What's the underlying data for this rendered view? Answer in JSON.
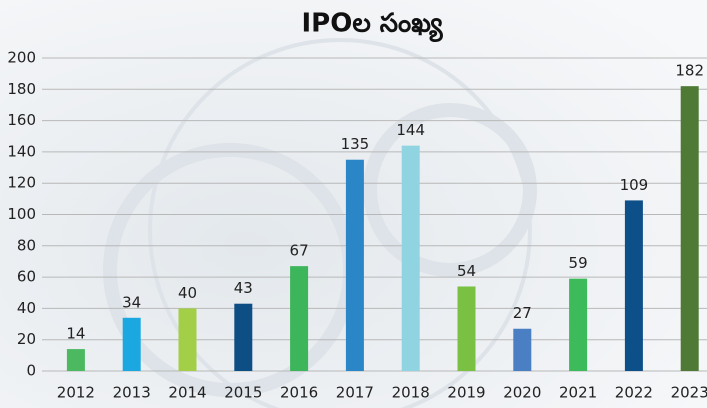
{
  "chart_data": {
    "type": "bar",
    "title": "IPOల సంఖ్య",
    "categories": [
      "2012",
      "2013",
      "2014",
      "2015",
      "2016",
      "2017",
      "2018",
      "2019",
      "2020",
      "2021",
      "2022",
      "2023"
    ],
    "values": [
      14,
      34,
      40,
      43,
      67,
      135,
      144,
      54,
      27,
      59,
      109,
      182
    ],
    "colors": [
      "#4cb860",
      "#1ba8e0",
      "#a3cf48",
      "#0d4f85",
      "#3db55a",
      "#2b86c8",
      "#8fd4e0",
      "#7ac143",
      "#4a7fc4",
      "#3dba5a",
      "#0d4f88",
      "#4e7a35"
    ],
    "ylim": [
      0,
      200
    ],
    "yticks": [
      0,
      20,
      40,
      60,
      80,
      100,
      120,
      140,
      160,
      180,
      200
    ],
    "grid": true
  }
}
